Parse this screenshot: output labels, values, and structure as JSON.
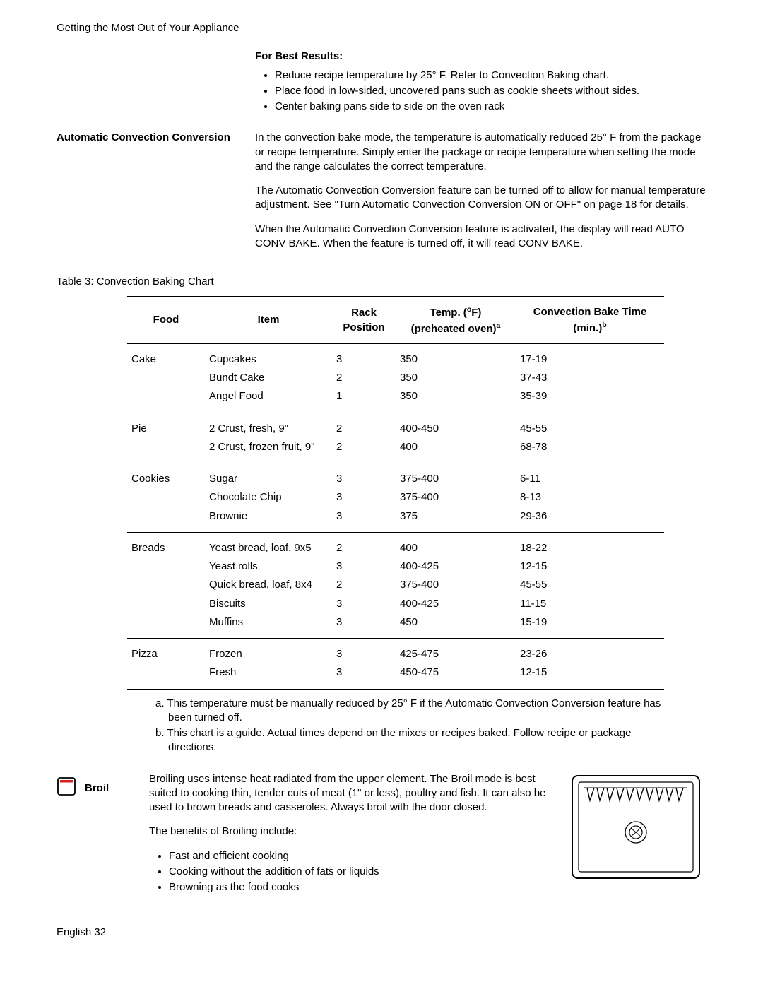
{
  "header": "Getting the Most Out of Your Appliance",
  "bestResults": {
    "heading": "For Best Results:",
    "items": [
      "Reduce recipe temperature by 25° F. Refer to Convection Baking chart.",
      "Place food in low-sided, uncovered pans such as cookie sheets without sides.",
      "Center baking pans side to side on the oven rack"
    ]
  },
  "acc": {
    "heading": "Automatic Convection Conversion",
    "p1": "In the convection bake mode, the temperature is automatically reduced 25° F from the package or recipe temperature. Simply enter the package or recipe temperature when setting the mode and the range calculates the correct temperature.",
    "p2": "The Automatic Convection Conversion feature can be turned off to allow for manual temperature adjustment. See \"Turn Automatic Convection Conversion ON or OFF\" on page 18 for details.",
    "p3": "When the Automatic Convection Conversion feature is activated, the display will read AUTO CONV BAKE. When the feature is turned off, it will read CONV BAKE."
  },
  "tableCaption": "Table 3: Convection Baking Chart",
  "table": {
    "headers": {
      "food": "Food",
      "item": "Item",
      "rack": "Rack Position",
      "temp_pre": "Temp. (",
      "temp_deg": "o",
      "temp_f": "F)",
      "temp_sub": "(preheated oven)",
      "temp_sup": "a",
      "time_pre": "Convection Bake Time (min.)",
      "time_sup": "b"
    },
    "groups": [
      {
        "food": "Cake",
        "rows": [
          {
            "item": "Cupcakes",
            "rack": "3",
            "temp": "350",
            "time": "17-19"
          },
          {
            "item": "Bundt Cake",
            "rack": "2",
            "temp": "350",
            "time": "37-43"
          },
          {
            "item": "Angel Food",
            "rack": "1",
            "temp": "350",
            "time": "35-39"
          }
        ]
      },
      {
        "food": "Pie",
        "rows": [
          {
            "item": "2 Crust, fresh, 9\"",
            "rack": "2",
            "temp": "400-450",
            "time": "45-55"
          },
          {
            "item": "2 Crust, frozen fruit, 9\"",
            "rack": "2",
            "temp": "400",
            "time": "68-78"
          }
        ]
      },
      {
        "food": "Cookies",
        "rows": [
          {
            "item": "Sugar",
            "rack": "3",
            "temp": "375-400",
            "time": "6-11"
          },
          {
            "item": "Chocolate Chip",
            "rack": "3",
            "temp": "375-400",
            "time": "8-13"
          },
          {
            "item": "Brownie",
            "rack": "3",
            "temp": "375",
            "time": "29-36"
          }
        ]
      },
      {
        "food": "Breads",
        "rows": [
          {
            "item": "Yeast bread, loaf, 9x5",
            "rack": "2",
            "temp": "400",
            "time": "18-22"
          },
          {
            "item": "Yeast rolls",
            "rack": "3",
            "temp": "400-425",
            "time": "12-15"
          },
          {
            "item": "Quick bread, loaf, 8x4",
            "rack": "2",
            "temp": "375-400",
            "time": "45-55"
          },
          {
            "item": "Biscuits",
            "rack": "3",
            "temp": "400-425",
            "time": "11-15"
          },
          {
            "item": "Muffins",
            "rack": "3",
            "temp": "450",
            "time": "15-19"
          }
        ]
      },
      {
        "food": "Pizza",
        "rows": [
          {
            "item": "Frozen",
            "rack": "3",
            "temp": "425-475",
            "time": "23-26"
          },
          {
            "item": "Fresh",
            "rack": "3",
            "temp": "450-475",
            "time": "12-15"
          }
        ]
      }
    ]
  },
  "footnotes": {
    "a": "a. This temperature must be manually reduced by 25° F if the Automatic Convection Conversion feature has been turned off.",
    "b": "b. This chart is a guide. Actual times depend on the mixes or recipes baked. Follow recipe or package directions."
  },
  "broil": {
    "label": "Broil",
    "p1": "Broiling uses intense heat radiated from the upper element. The Broil mode is best suited to cooking thin, tender cuts of meat (1\" or less), poultry and fish. It can also be used to brown breads and casseroles. Always broil with the door closed.",
    "p2": "The benefits of Broiling include:",
    "items": [
      "Fast and efficient cooking",
      "Cooking without the addition of fats or liquids",
      "Browning as the food cooks"
    ]
  },
  "footer": "English 32"
}
